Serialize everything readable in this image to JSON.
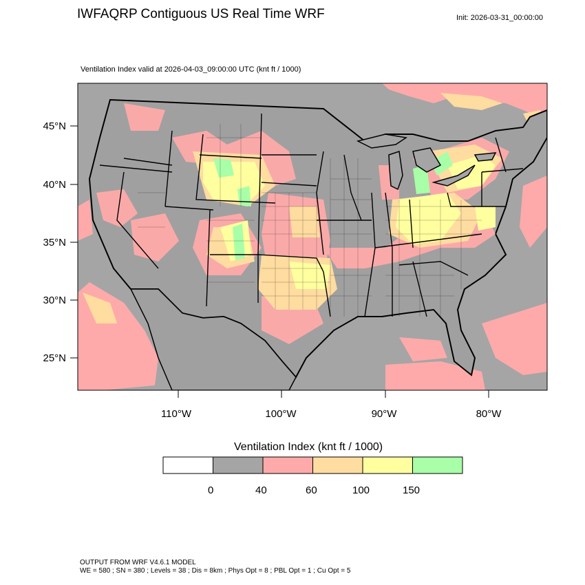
{
  "title": "IWFAQRP Contiguous US Real Time WRF",
  "init": "Init: 2026-03-31_00:00:00",
  "subtitle": "Ventilation Index valid at 2026-04-03_09:00:00 UTC   (knt ft / 1000)",
  "map": {
    "lat_labels": [
      "45°N",
      "40°N",
      "35°N",
      "30°N",
      "25°N"
    ],
    "lon_labels": [
      "110°W",
      "100°W",
      "90°W",
      "80°W"
    ],
    "colors": {
      "ocean_gray": "#a5a5a5",
      "land_gray": "#a0a0a0",
      "pink": "#ffaaaa",
      "tan": "#ffdca0",
      "yellow": "#ffffa0",
      "green": "#a8ffa8",
      "white": "#ffffff",
      "border": "#000000"
    }
  },
  "legend": {
    "title": "Ventilation Index  (knt ft / 1000)",
    "ticks": [
      "0",
      "40",
      "60",
      "100",
      "150"
    ],
    "colors": [
      "#ffffff",
      "#a5a5a5",
      "#ffaaaa",
      "#ffdca0",
      "#ffffa0",
      "#a8ffa8"
    ]
  },
  "footer": {
    "line1": "OUTPUT FROM WRF V4.6.1 MODEL",
    "line2": "WE = 580 ; SN = 380 ; Levels = 38 ; Dis = 8km ; Phys Opt = 8 ; PBL Opt = 1 ; Cu Opt = 5"
  }
}
